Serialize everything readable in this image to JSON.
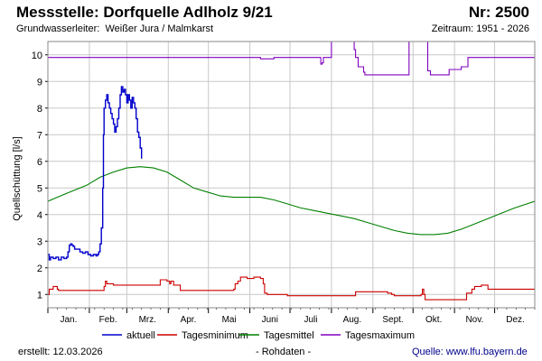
{
  "header": {
    "title": "Messstelle: Dorfquelle Adlholz 9/21",
    "nr": "Nr: 2500",
    "aquifer_label": "Grundwasserleiter:",
    "aquifer_value": "Weißer Jura / Malmkarst",
    "period": "Zeitraum: 1951 - 2026"
  },
  "footer": {
    "created": "erstellt:  12.03.2026",
    "raw": "- Rohdaten -",
    "source_label": "Quelle:",
    "source_url": "www.lfu.bayern.de"
  },
  "chart_data": {
    "type": "line",
    "title": "",
    "xlabel": "",
    "ylabel": "Quellschüttung [l/s]",
    "x_unit": "day of year",
    "xlim": [
      1,
      365
    ],
    "ylim": [
      0.5,
      10.5
    ],
    "yticks": [
      1,
      2,
      3,
      4,
      5,
      6,
      7,
      8,
      9,
      10
    ],
    "month_labels": [
      "Jan.",
      "Feb.",
      "Mrz.",
      "Apr.",
      "Mai",
      "Juni",
      "Juli",
      "Aug.",
      "Sept.",
      "Okt.",
      "Nov.",
      "Dez."
    ],
    "grid": true,
    "legend_position": "bottom",
    "colors": {
      "aktuell": "#0000cc",
      "Tagesminimum": "#cc0000",
      "Tagesmittel": "#008000",
      "Tagesmaximum": "#8000c0",
      "grid": "#c8c8c8",
      "frame": "#888888"
    },
    "series": [
      {
        "name": "aktuell",
        "x": [
          1,
          2,
          3,
          5,
          7,
          9,
          11,
          13,
          15,
          16,
          17,
          18,
          19,
          20,
          21,
          23,
          25,
          27,
          29,
          31,
          33,
          35,
          37,
          38,
          39,
          40,
          41,
          42,
          42.5,
          43,
          44,
          45,
          46,
          47,
          48,
          49,
          50,
          51,
          52,
          53,
          54,
          55,
          56,
          57,
          58,
          59,
          60,
          61,
          62,
          63,
          64,
          65,
          66,
          67,
          68,
          69,
          70,
          71
        ],
        "y": [
          2.5,
          2.3,
          2.4,
          2.35,
          2.4,
          2.3,
          2.4,
          2.35,
          2.4,
          2.6,
          2.85,
          2.9,
          2.85,
          2.8,
          2.7,
          2.7,
          2.6,
          2.55,
          2.6,
          2.5,
          2.45,
          2.5,
          2.45,
          2.5,
          2.6,
          2.9,
          3.5,
          5.0,
          7.0,
          8.0,
          8.3,
          8.5,
          8.2,
          8.0,
          7.8,
          7.6,
          7.4,
          7.1,
          7.3,
          7.6,
          8.0,
          8.5,
          8.8,
          8.6,
          8.7,
          8.5,
          8.2,
          8.5,
          8.3,
          8.0,
          8.4,
          8.2,
          8.0,
          7.6,
          7.1,
          6.9,
          6.5,
          6.1
        ]
      },
      {
        "name": "Tagesminimum",
        "x": [
          1,
          2,
          5,
          7,
          8,
          9,
          12,
          15,
          20,
          30,
          40,
          42,
          43,
          44,
          45,
          50,
          60,
          70,
          80,
          82,
          84,
          85,
          90,
          92,
          93,
          95,
          100,
          110,
          120,
          130,
          140,
          141,
          143,
          145,
          148,
          150,
          155,
          160,
          162,
          163,
          165,
          170,
          180,
          190,
          200,
          210,
          220,
          230,
          231,
          235,
          245,
          250,
          255,
          258,
          260,
          270,
          279,
          280,
          281,
          282,
          283,
          290,
          300,
          305,
          307,
          310,
          312,
          314,
          316,
          318,
          320,
          325,
          330,
          340,
          350,
          360,
          365
        ],
        "y": [
          1.0,
          1.2,
          1.3,
          1.3,
          1.2,
          1.15,
          1.15,
          1.15,
          1.15,
          1.15,
          1.15,
          1.15,
          1.3,
          1.5,
          1.4,
          1.35,
          1.35,
          1.35,
          1.35,
          1.35,
          1.35,
          1.55,
          1.5,
          1.4,
          1.5,
          1.35,
          1.15,
          1.15,
          1.15,
          1.15,
          1.2,
          1.4,
          1.5,
          1.65,
          1.65,
          1.6,
          1.65,
          1.6,
          1.4,
          1.05,
          1.0,
          1.0,
          0.95,
          0.95,
          0.95,
          0.95,
          0.95,
          0.95,
          1.1,
          1.1,
          1.1,
          1.1,
          1.05,
          1.0,
          0.95,
          0.95,
          0.95,
          1.0,
          1.2,
          1.0,
          0.8,
          0.8,
          0.8,
          0.8,
          0.8,
          0.8,
          0.8,
          1.05,
          1.05,
          1.2,
          1.3,
          1.35,
          1.2,
          1.2,
          1.2,
          1.2,
          1.2
        ]
      },
      {
        "name": "Tagesmittel",
        "x": [
          1,
          15,
          30,
          40,
          50,
          60,
          70,
          80,
          90,
          100,
          110,
          120,
          130,
          140,
          150,
          160,
          170,
          180,
          190,
          200,
          210,
          220,
          230,
          240,
          250,
          260,
          270,
          280,
          290,
          300,
          310,
          320,
          330,
          340,
          350,
          365
        ],
        "y": [
          4.5,
          4.8,
          5.1,
          5.4,
          5.6,
          5.75,
          5.8,
          5.75,
          5.6,
          5.3,
          5.0,
          4.85,
          4.7,
          4.65,
          4.65,
          4.65,
          4.55,
          4.4,
          4.25,
          4.15,
          4.05,
          3.95,
          3.85,
          3.7,
          3.55,
          3.4,
          3.3,
          3.25,
          3.25,
          3.3,
          3.45,
          3.65,
          3.85,
          4.05,
          4.25,
          4.5
        ]
      },
      {
        "name": "Tagesmaximum",
        "x": [
          1,
          30,
          60,
          90,
          120,
          140,
          150,
          160,
          170,
          180,
          190,
          200,
          204,
          205,
          206,
          207,
          212,
          213,
          214,
          215,
          225,
          229,
          230,
          231,
          233,
          236,
          237,
          238,
          248,
          250,
          260,
          268,
          270,
          271,
          282,
          283,
          284,
          285,
          287,
          298,
          300,
          301,
          310,
          312,
          315,
          318,
          320,
          330,
          340,
          350,
          365
        ],
        "y": [
          9.9,
          9.9,
          9.9,
          9.9,
          9.9,
          9.9,
          9.9,
          9.85,
          9.9,
          9.9,
          9.9,
          9.9,
          9.9,
          9.65,
          9.7,
          9.9,
          9.9,
          10.5,
          10.5,
          10.5,
          10.5,
          10.5,
          10.2,
          9.9,
          9.55,
          9.55,
          9.35,
          9.25,
          9.25,
          9.25,
          9.25,
          9.25,
          9.25,
          10.5,
          10.5,
          10.5,
          10.5,
          9.4,
          9.25,
          9.25,
          9.25,
          9.45,
          9.55,
          9.55,
          9.9,
          9.9,
          9.9,
          9.9,
          9.9,
          9.9,
          9.9
        ]
      }
    ]
  }
}
